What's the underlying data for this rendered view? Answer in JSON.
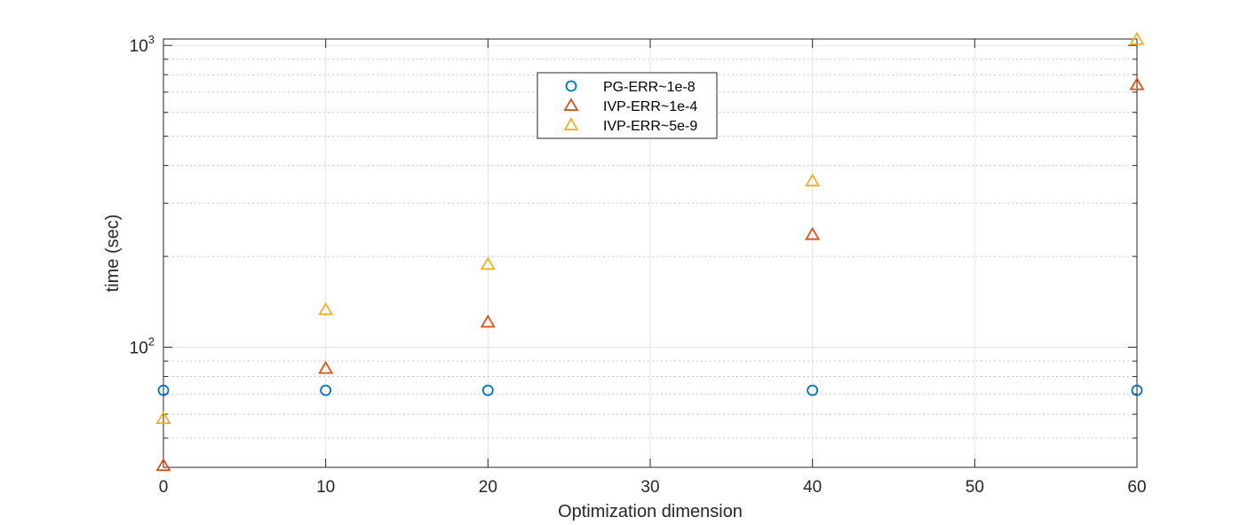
{
  "chart_data": {
    "type": "scatter",
    "title": "",
    "xlabel": "Optimization dimension",
    "ylabel": "time (sec)",
    "xlim": [
      0,
      60
    ],
    "ylim": [
      40,
      1050
    ],
    "yscale": "log",
    "grid": true,
    "legend_position": "top-center",
    "x_ticks": [
      "0",
      "10",
      "20",
      "30",
      "40",
      "50",
      "60"
    ],
    "y_ticks": [
      {
        "base": "10",
        "exp": "2",
        "value": 100
      },
      {
        "base": "10",
        "exp": "3",
        "value": 1000
      }
    ],
    "series": [
      {
        "name": "PG-ERR~1e-8",
        "marker": "circle",
        "color": "#0072BD",
        "x": [
          0,
          10,
          20,
          40,
          60
        ],
        "y": [
          72,
          72,
          72,
          72,
          72
        ]
      },
      {
        "name": "IVP-ERR~1e-4",
        "marker": "triangle",
        "color": "#D95319",
        "x": [
          0,
          10,
          20,
          40,
          60
        ],
        "y": [
          40.5,
          85,
          121,
          236,
          740
        ]
      },
      {
        "name": "IVP-ERR~5e-9",
        "marker": "triangle",
        "color": "#EDB120",
        "x": [
          0,
          10,
          20,
          40,
          60
        ],
        "y": [
          58,
          133,
          188,
          355,
          1045
        ]
      }
    ]
  }
}
